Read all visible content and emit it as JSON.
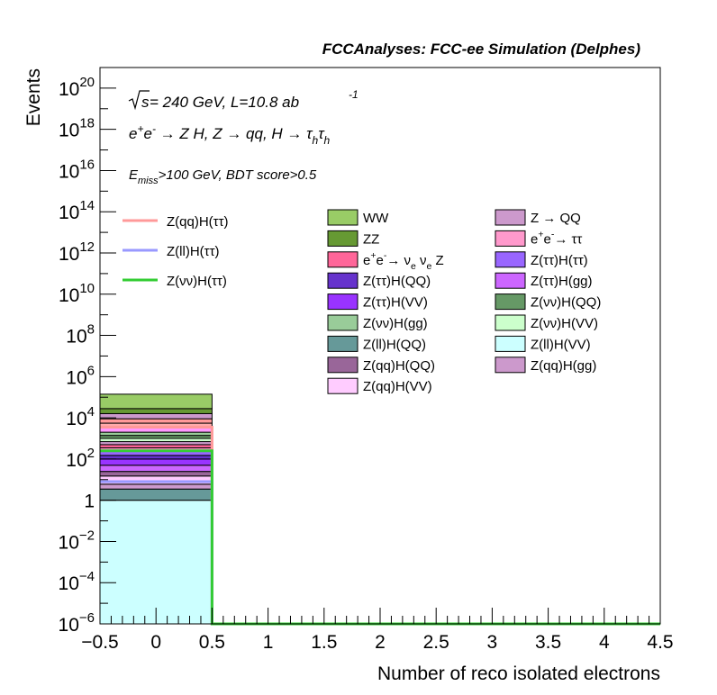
{
  "chart_data": {
    "type": "bar",
    "title": "FCCAnalyses: FCC-ee Simulation (Delphes)",
    "annotations": {
      "energy_prefix": "s",
      "energy_text": " = 240 GeV, L=10.8 ab",
      "energy_sup": "-1",
      "process": "e⁺e⁻ → Z H, Z → qq, H → τ_h τ_h",
      "selection": "E_miss>100 GeV, BDT score>0.5"
    },
    "xlabel": "Number of reco isolated electrons",
    "ylabel": "Events",
    "xlim": [
      -0.5,
      4.5
    ],
    "ylim": [
      1e-06,
      1e+21
    ],
    "yscale": "log",
    "x_ticks": [
      "−0.5",
      "0",
      "0.5",
      "1",
      "1.5",
      "2",
      "2.5",
      "3",
      "3.5",
      "4",
      "4.5"
    ],
    "y_ticks": [
      {
        "base": "10",
        "exp": "20",
        "value": 1e+20
      },
      {
        "base": "10",
        "exp": "18",
        "value": 1e+18
      },
      {
        "base": "10",
        "exp": "16",
        "value": 1e+16
      },
      {
        "base": "10",
        "exp": "14",
        "value": 100000000000000.0
      },
      {
        "base": "10",
        "exp": "12",
        "value": 1000000000000.0
      },
      {
        "base": "10",
        "exp": "10",
        "value": 10000000000.0
      },
      {
        "base": "10",
        "exp": "8",
        "value": 100000000.0
      },
      {
        "base": "10",
        "exp": "6",
        "value": 1000000.0
      },
      {
        "base": "10",
        "exp": "4",
        "value": 10000.0
      },
      {
        "base": "10",
        "exp": "2",
        "value": 100.0
      },
      {
        "base": "1",
        "exp": "",
        "value": 1
      },
      {
        "base": "10",
        "exp": "−2",
        "value": 0.01
      },
      {
        "base": "10",
        "exp": "−4",
        "value": 0.0001
      },
      {
        "base": "10",
        "exp": "−6",
        "value": 1e-06
      }
    ],
    "bin": [
      -0.5,
      0.5
    ],
    "stack_boundaries": [
      1.0,
      3.5,
      6,
      15,
      25,
      50,
      100,
      150,
      250,
      350,
      500,
      700,
      1000,
      1400,
      2000,
      3200,
      5500,
      9000,
      16000,
      28000,
      140000
    ],
    "stack_colors": [
      "#ccffff",
      "#669999",
      "#cc99cc",
      "#ffccff",
      "#996699",
      "#cc66ff",
      "#9933ff",
      "#6633cc",
      "#9966ff",
      "#ff99cc",
      "#ff6699",
      "#cc99cc",
      "#ccffcc",
      "#669966",
      "#99cc99",
      "#ff99ff",
      "#ffaaaa",
      "#ff9999",
      "#cc99cc",
      "#669933",
      "#99cc66"
    ],
    "signal_series": [
      {
        "name": "Z(qq)H(ττ)",
        "color": "#ff9999",
        "value": 3500
      },
      {
        "name": "Z(ll)H(ττ)",
        "color": "#9999ff",
        "value": 8
      },
      {
        "name": "Z(νν)H(ττ)",
        "color": "#33cc33",
        "value": 250
      }
    ],
    "background_legend": [
      {
        "name": "WW",
        "color": "#99cc66"
      },
      {
        "name": "Z → QQ",
        "color": "#cc99cc"
      },
      {
        "name": "ZZ",
        "color": "#669933"
      },
      {
        "name": "e⁺e⁻→ ττ",
        "color": "#ff99cc"
      },
      {
        "name": "e⁺e⁻→ ν_e ν_e Z",
        "color": "#ff6699"
      },
      {
        "name": "Z(ττ)H(ττ)",
        "color": "#9966ff"
      },
      {
        "name": "Z(ττ)H(QQ)",
        "color": "#6633cc"
      },
      {
        "name": "Z(ττ)H(gg)",
        "color": "#cc66ff"
      },
      {
        "name": "Z(ττ)H(VV)",
        "color": "#9933ff"
      },
      {
        "name": "Z(νν)H(QQ)",
        "color": "#669966"
      },
      {
        "name": "Z(νν)H(gg)",
        "color": "#99cc99"
      },
      {
        "name": "Z(νν)H(VV)",
        "color": "#ccffcc"
      },
      {
        "name": "Z(ll)H(QQ)",
        "color": "#669999"
      },
      {
        "name": "Z(ll)H(VV)",
        "color": "#ccffff"
      },
      {
        "name": "Z(qq)H(QQ)",
        "color": "#996699"
      },
      {
        "name": "Z(qq)H(gg)",
        "color": "#cc99cc"
      },
      {
        "name": "Z(qq)H(VV)",
        "color": "#ffccff"
      }
    ]
  }
}
